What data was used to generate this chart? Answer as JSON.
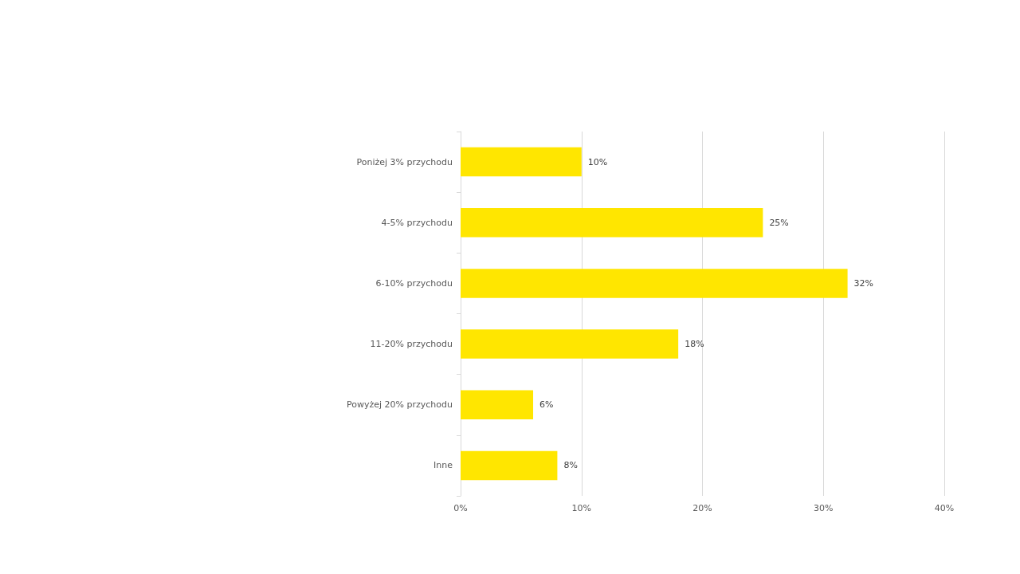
{
  "chart_data": {
    "type": "bar",
    "orientation": "horizontal",
    "categories": [
      "Poniżej 3% przychodu",
      "4-5% przychodu",
      "6-10% przychodu",
      "11-20% przychodu",
      "Powyżej 20% przychodu",
      "Inne"
    ],
    "values": [
      10,
      25,
      32,
      18,
      6,
      8
    ],
    "value_labels": [
      "10%",
      "25%",
      "32%",
      "18%",
      "6%",
      "8%"
    ],
    "color": "#ffe600",
    "xlim": [
      0,
      40
    ],
    "xticks": [
      {
        "value": 0,
        "label": "0%"
      },
      {
        "value": 10,
        "label": "10%"
      },
      {
        "value": 20,
        "label": "20%"
      },
      {
        "value": 30,
        "label": "30%"
      },
      {
        "value": 40,
        "label": "40%"
      }
    ],
    "grid": "x"
  }
}
